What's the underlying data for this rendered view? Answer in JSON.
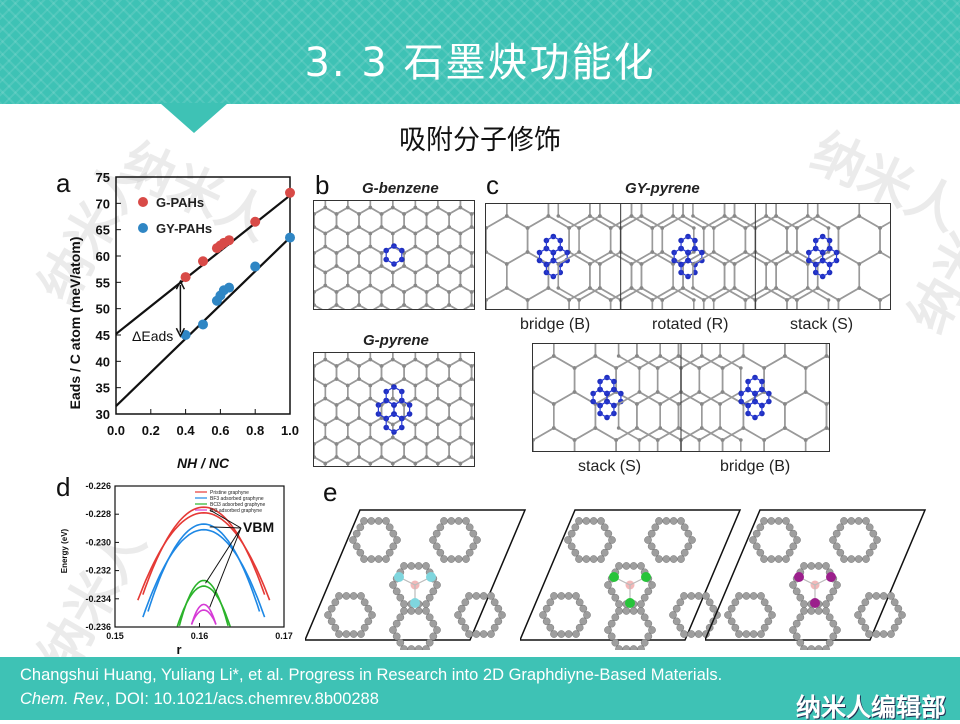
{
  "slide": {
    "title": "3. 3  石墨炔功能化",
    "subtitle": "吸附分子修饰",
    "watermark": "纳米人",
    "brand": "纳米人编辑部",
    "colors": {
      "accent": "#3ec2b5",
      "red": "#d84a47",
      "blue": "#2f86c4"
    }
  },
  "figure": {
    "panels": {
      "a": "a",
      "b": "b",
      "c": "c",
      "d": "d",
      "e": "e"
    },
    "b": {
      "title1": "G-benzene",
      "title2": "G-pyrene"
    },
    "c": {
      "title": "GY-pyrene",
      "cap1": "bridge (B)",
      "cap2": "rotated (R)",
      "cap3": "stack (S)",
      "cap4": "stack (S)",
      "cap5": "bridge (B)"
    },
    "d": {
      "annotation": "VBM"
    }
  },
  "chart_data": [
    {
      "type": "scatter",
      "panel": "a",
      "ylabel": "Eads / C atom (meV/atom)",
      "xlabel": "NH / NC",
      "xlim": [
        0.0,
        1.0
      ],
      "ylim": [
        30,
        75
      ],
      "xticks": [
        "0.0",
        "0.2",
        "0.4",
        "0.6",
        "0.8",
        "1.0"
      ],
      "yticks": [
        "30",
        "35",
        "40",
        "45",
        "50",
        "55",
        "60",
        "65",
        "70",
        "75"
      ],
      "annotation": "ΔEads",
      "legend_position": "top-left",
      "series": [
        {
          "name": "G-PAHs",
          "color": "#d84a47",
          "x": [
            0.4,
            0.5,
            0.58,
            0.6,
            0.62,
            0.65,
            0.8,
            1.0
          ],
          "y": [
            56,
            59,
            61.5,
            62,
            62.5,
            63,
            66.5,
            72
          ],
          "fit": [
            [
              0.0,
              45.2
            ],
            [
              1.0,
              71.5
            ]
          ]
        },
        {
          "name": "GY-PAHs",
          "color": "#2f86c4",
          "x": [
            0.4,
            0.5,
            0.58,
            0.6,
            0.62,
            0.65,
            0.8,
            1.0
          ],
          "y": [
            45,
            47,
            51.5,
            52.5,
            53.5,
            54,
            58,
            63.5
          ],
          "fit": [
            [
              0.0,
              31.5
            ],
            [
              1.0,
              63.5
            ]
          ]
        }
      ]
    },
    {
      "type": "line",
      "panel": "d",
      "ylabel": "Energy (eV)",
      "xlabel": "r",
      "xlim": [
        0.15,
        0.17
      ],
      "ylim": [
        -0.236,
        -0.226
      ],
      "xticks": [
        "0.15",
        "0.16",
        "0.17"
      ],
      "yticks": [
        "-0.226",
        "-0.228",
        "-0.230",
        "-0.232",
        "-0.234",
        "-0.236"
      ],
      "legend_position": "top-right",
      "series": [
        {
          "name": "Pristine graphyne",
          "color": "#e53935",
          "peaks": [
            -0.2275,
            -0.2279
          ]
        },
        {
          "name": "BF3 adsorbed graphyne",
          "color": "#1e88e5",
          "peaks": [
            -0.2287,
            -0.2291
          ]
        },
        {
          "name": "BCl3 adsorbed graphyne",
          "color": "#2bb32b",
          "peaks": [
            -0.2327,
            -0.2331
          ]
        },
        {
          "name": "BI3 adsorbed graphyne",
          "color": "#d63ad6",
          "peaks": [
            -0.2344,
            -0.2348
          ]
        }
      ]
    }
  ],
  "citation": {
    "line1": "Changshui Huang, Yuliang Li*, et al. Progress in Research into 2D Graphdiyne-Based Materials.",
    "journal": "Chem. Rev.",
    "doi": ", DOI: 10.1021/acs.chemrev.8b00288"
  }
}
